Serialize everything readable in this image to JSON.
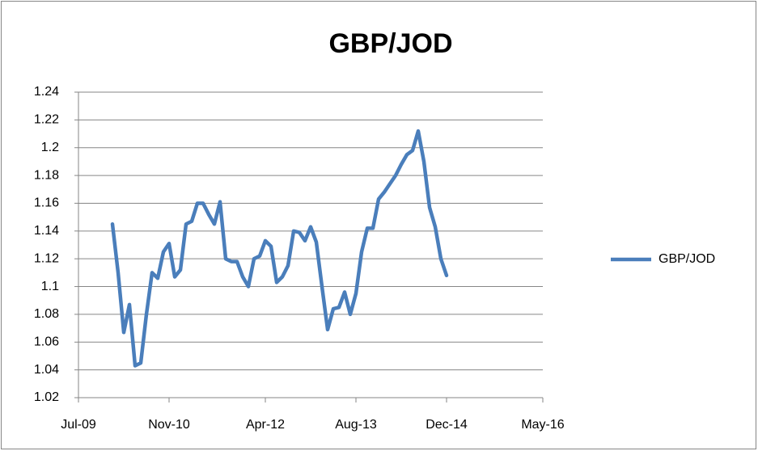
{
  "chart_data": {
    "type": "line",
    "title": "GBP/JOD",
    "x": [
      "2010-01",
      "2010-02",
      "2010-03",
      "2010-04",
      "2010-05",
      "2010-06",
      "2010-07",
      "2010-08",
      "2010-09",
      "2010-10",
      "2010-11",
      "2010-12",
      "2011-01",
      "2011-02",
      "2011-03",
      "2011-04",
      "2011-05",
      "2011-06",
      "2011-07",
      "2011-08",
      "2011-09",
      "2011-10",
      "2011-11",
      "2011-12",
      "2012-01",
      "2012-02",
      "2012-03",
      "2012-04",
      "2012-05",
      "2012-06",
      "2012-07",
      "2012-08",
      "2012-09",
      "2012-10",
      "2012-11",
      "2012-12",
      "2013-01",
      "2013-02",
      "2013-03",
      "2013-04",
      "2013-05",
      "2013-06",
      "2013-07",
      "2013-08",
      "2013-09",
      "2013-10",
      "2013-11",
      "2013-12",
      "2014-01",
      "2014-02",
      "2014-03",
      "2014-04",
      "2014-05",
      "2014-06",
      "2014-07",
      "2014-08",
      "2014-09",
      "2014-10",
      "2014-11",
      "2014-12"
    ],
    "series": [
      {
        "name": "GBP/JOD",
        "color": "#4a7ebb",
        "values": [
          1.145,
          1.11,
          1.067,
          1.087,
          1.043,
          1.045,
          1.08,
          1.11,
          1.106,
          1.125,
          1.131,
          1.107,
          1.112,
          1.145,
          1.147,
          1.16,
          1.16,
          1.152,
          1.145,
          1.161,
          1.12,
          1.118,
          1.118,
          1.107,
          1.1,
          1.12,
          1.122,
          1.133,
          1.129,
          1.103,
          1.107,
          1.115,
          1.14,
          1.139,
          1.133,
          1.143,
          1.132,
          1.1,
          1.069,
          1.084,
          1.085,
          1.096,
          1.08,
          1.095,
          1.125,
          1.142,
          1.142,
          1.163,
          1.168,
          1.174,
          1.18,
          1.188,
          1.195,
          1.198,
          1.212,
          1.19,
          1.157,
          1.143,
          1.12,
          1.108
        ]
      }
    ],
    "xlim": [
      "2009-07",
      "2016-05"
    ],
    "xticks": [
      {
        "value": "2009-07",
        "label": "Jul-09"
      },
      {
        "value": "2010-11",
        "label": "Nov-10"
      },
      {
        "value": "2012-04",
        "label": "Apr-12"
      },
      {
        "value": "2013-08",
        "label": "Aug-13"
      },
      {
        "value": "2014-12",
        "label": "Dec-14"
      },
      {
        "value": "2016-05",
        "label": "May-16"
      }
    ],
    "ylim": [
      1.02,
      1.24
    ],
    "yticks": [
      1.02,
      1.04,
      1.06,
      1.08,
      1.1,
      1.12,
      1.14,
      1.16,
      1.18,
      1.2,
      1.22,
      1.24
    ],
    "grid": true,
    "legend": "right"
  }
}
